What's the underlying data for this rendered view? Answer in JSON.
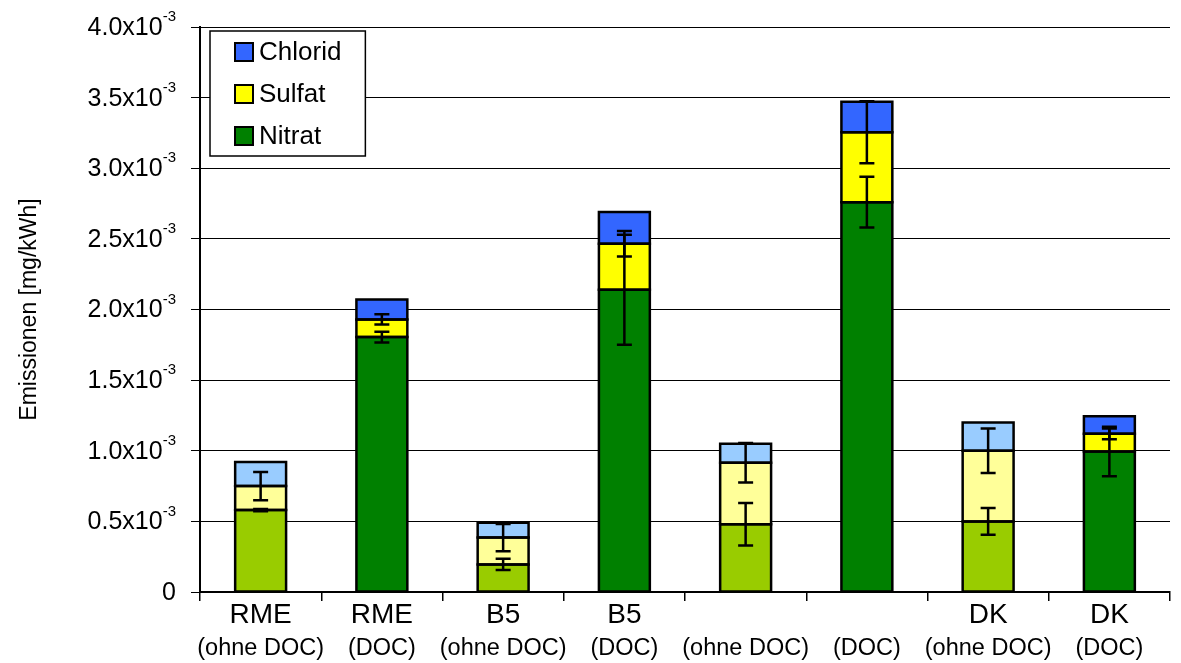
{
  "chart_data": {
    "type": "bar",
    "stacked": true,
    "ylabel": "Emissionen [mg/kWh]",
    "categories": [
      "RME\n(ohne DOC)",
      "RME\n(DOC)",
      "B5\n(ohne DOC)",
      "B5\n(DOC)",
      "(ohne DOC)",
      "(DOC)",
      "DK\n(ohne DOC)",
      "DK\n(DOC)"
    ],
    "series": [
      {
        "name": "Nitrat",
        "color": "#008000",
        "colors": [
          "#99cc00",
          "#008000",
          "#99cc00",
          "#008000",
          "#99cc00",
          "#008000",
          "#99cc00",
          "#008000"
        ],
        "values": [
          0.00058,
          0.001805,
          0.000195,
          0.00214,
          0.00048,
          0.00276,
          0.0005,
          0.000995
        ],
        "errors": [
          8e-06,
          3.8e-05,
          4e-05,
          0.00039,
          0.00015,
          0.00018,
          9.5e-05,
          0.000175
        ]
      },
      {
        "name": "Sulfat",
        "color": "#ffff00",
        "colors": [
          "#ffff99",
          "#ffff00",
          "#ffff99",
          "#ffff00",
          "#ffff99",
          "#ffff00",
          "#ffff99",
          "#ffff00"
        ],
        "values": [
          0.00017,
          0.000125,
          0.00019,
          0.000325,
          0.000435,
          0.000495,
          0.0005,
          0.000125
        ],
        "errors": [
          0.0001,
          3.7e-05,
          9.7e-05,
          9e-05,
          0.00014,
          0.00022,
          0.000157,
          3.8e-05
        ]
      },
      {
        "name": "Chlorid",
        "color": "#3366ff",
        "colors": [
          "#99ccff",
          "#3366ff",
          "#99ccff",
          "#3366ff",
          "#99ccff",
          "#3366ff",
          "#99ccff",
          "#3366ff"
        ],
        "values": [
          0.00017,
          0.00014,
          0.000105,
          0.000225,
          0.000135,
          0.000215,
          0.0002,
          0.000125
        ]
      }
    ],
    "ylim": [
      0,
      0.004
    ],
    "yticks": [
      0,
      {
        "value": 0.0005,
        "label": "0.5x10$^{-3}$"
      },
      {
        "value": 0.001,
        "label": "1.0x10$^{-3}$"
      },
      {
        "value": 0.0015,
        "label": "1.5x10$^{-3}$"
      },
      {
        "value": 0.002,
        "label": "2.0x10$^{-3}$"
      },
      {
        "value": 0.0025,
        "label": "2.5x10$^{-3}$"
      },
      {
        "value": 0.003,
        "label": "3.0x10$^{-3}$"
      },
      {
        "value": 0.0035,
        "label": "3.5x10$^{-3}$"
      },
      {
        "value": 0.004,
        "label": "4.0x10$^{-3}$"
      }
    ],
    "grid": "y",
    "legend": "top left"
  }
}
